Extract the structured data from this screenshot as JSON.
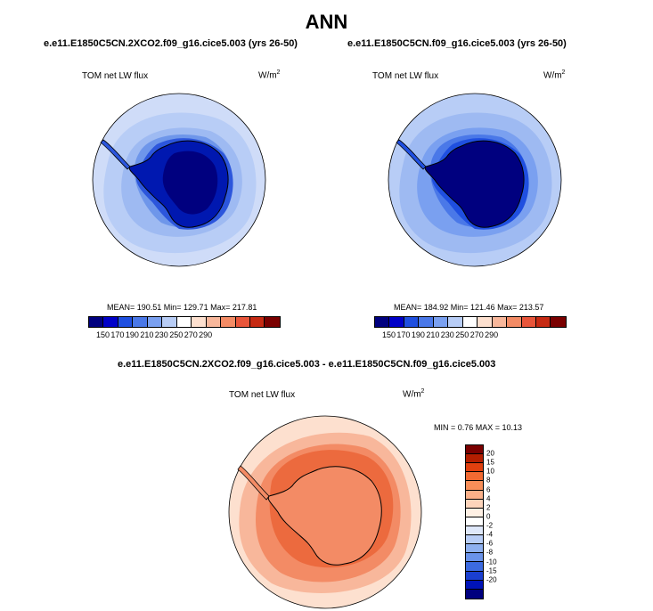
{
  "main_title": "ANN",
  "panels": [
    {
      "title": "e.e11.E1850C5CN.2XCO2.f09_g16.cice5.003 (yrs 26-50)",
      "variable": "TOM net LW flux",
      "units": "W/m",
      "units_sup": "2",
      "stats": "MEAN= 190.51  Min= 129.71  Max= 217.81"
    },
    {
      "title": "e.e11.E1850C5CN.f09_g16.cice5.003 (yrs 26-50)",
      "variable": "TOM net LW flux",
      "units": "W/m",
      "units_sup": "2",
      "stats": "MEAN= 184.92  Min= 121.46  Max= 213.57"
    }
  ],
  "colorbar_top": {
    "colors": [
      "#00007f",
      "#0000c8",
      "#1f4fe0",
      "#4a78e8",
      "#7aa0f0",
      "#b8cdf6",
      "#ffffff",
      "#fde0cf",
      "#f8b79b",
      "#f38b65",
      "#e8553a",
      "#c62a13",
      "#7a0000"
    ],
    "tick_labels": [
      "150",
      "170",
      "190",
      "210",
      "230",
      "250",
      "270",
      "290"
    ]
  },
  "diff": {
    "title": "e.e11.E1850C5CN.2XCO2.f09_g16.cice5.003 - e.e11.E1850C5CN.f09_g16.cice5.003",
    "variable": "TOM net LW flux",
    "units": "W/m",
    "units_sup": "2",
    "stats": "MIN =   0.76 MAX =  10.13",
    "colorbar": {
      "colors": [
        "#7a0000",
        "#b31e00",
        "#e0400f",
        "#f26a32",
        "#f88e58",
        "#fbb089",
        "#fdd4bb",
        "#fff0e4",
        "#ffffff",
        "#dfe8fa",
        "#b8cdf6",
        "#8eb0ef",
        "#6a93ea",
        "#3c6ae0",
        "#1a3fd0",
        "#0013b8",
        "#00007f"
      ],
      "tick_labels": [
        "20",
        "15",
        "10",
        "8",
        "6",
        "4",
        "2",
        "0",
        "-2",
        "-4",
        "-6",
        "-8",
        "-10",
        "-15",
        "-20"
      ]
    }
  },
  "map_colors": {
    "abs_outer": "#cfdcf8",
    "abs_band1": "#b8cdf6",
    "abs_band2": "#9ebaf2",
    "abs_band3": "#6e96ea",
    "abs_band4": "#2c56dc",
    "abs_band5": "#0018b0",
    "abs_core": "#00007f",
    "diff_outer": "#fde0cf",
    "diff_band1": "#f8b79b",
    "diff_band2": "#f38b65",
    "diff_band3": "#ec6a3e"
  }
}
